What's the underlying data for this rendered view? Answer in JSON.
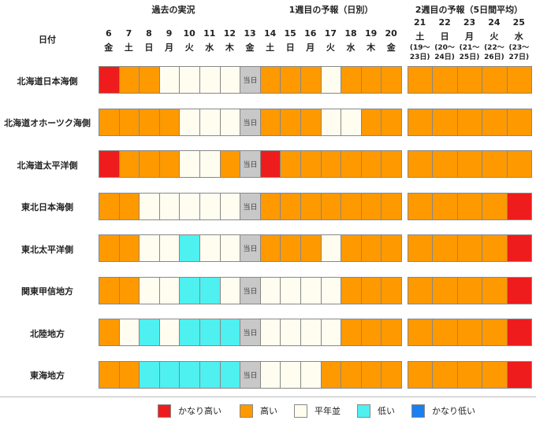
{
  "header": {
    "date_label": "日付",
    "past_label": "過去の実況",
    "week1_label": "1週目の予報（日別）",
    "week2_label": "2週目の予報（5日間平均）"
  },
  "colors": {
    "very_high": "#ee1c1c",
    "high": "#ff9900",
    "normal": "#fffdf0",
    "low": "#4ff0f0",
    "very_low": "#1a7ff0",
    "today": "#c8c8c8"
  },
  "chart_data": {
    "type": "table",
    "days": [
      {
        "num": "6",
        "wd": "金",
        "section": "past"
      },
      {
        "num": "7",
        "wd": "土",
        "section": "past"
      },
      {
        "num": "8",
        "wd": "日",
        "section": "past"
      },
      {
        "num": "9",
        "wd": "月",
        "section": "past"
      },
      {
        "num": "10",
        "wd": "火",
        "section": "past"
      },
      {
        "num": "11",
        "wd": "水",
        "section": "past"
      },
      {
        "num": "12",
        "wd": "木",
        "section": "past"
      },
      {
        "num": "13",
        "wd": "金",
        "section": "today"
      },
      {
        "num": "14",
        "wd": "土",
        "section": "week1"
      },
      {
        "num": "15",
        "wd": "日",
        "section": "week1"
      },
      {
        "num": "16",
        "wd": "月",
        "section": "week1"
      },
      {
        "num": "17",
        "wd": "火",
        "section": "week1"
      },
      {
        "num": "18",
        "wd": "水",
        "section": "week1"
      },
      {
        "num": "19",
        "wd": "木",
        "section": "week1"
      },
      {
        "num": "20",
        "wd": "金",
        "section": "week1"
      },
      {
        "num": "21",
        "wd": "土",
        "section": "week2",
        "range": [
          "(19〜",
          "23日)"
        ]
      },
      {
        "num": "22",
        "wd": "日",
        "section": "week2",
        "range": [
          "(20〜",
          "24日)"
        ]
      },
      {
        "num": "23",
        "wd": "月",
        "section": "week2",
        "range": [
          "(21〜",
          "25日)"
        ]
      },
      {
        "num": "24",
        "wd": "火",
        "section": "week2",
        "range": [
          "(22〜",
          "26日)"
        ]
      },
      {
        "num": "25",
        "wd": "水",
        "section": "week2",
        "range": [
          "(23〜",
          "27日)"
        ]
      }
    ],
    "today_label": "当日",
    "categories": [
      "very_high",
      "high",
      "normal",
      "low",
      "very_low"
    ],
    "regions": [
      {
        "name": "北海道日本海側",
        "cells": [
          "very_high",
          "high",
          "high",
          "normal",
          "normal",
          "normal",
          "normal",
          "today",
          "high",
          "high",
          "high",
          "normal",
          "high",
          "high",
          "high",
          "high",
          "high",
          "high",
          "high",
          "high"
        ]
      },
      {
        "name": "北海道オホーツク海側",
        "cells": [
          "high",
          "high",
          "high",
          "high",
          "normal",
          "normal",
          "normal",
          "today",
          "high",
          "high",
          "high",
          "normal",
          "normal",
          "high",
          "high",
          "high",
          "high",
          "high",
          "high",
          "high"
        ]
      },
      {
        "name": "北海道太平洋側",
        "cells": [
          "very_high",
          "high",
          "high",
          "high",
          "normal",
          "normal",
          "high",
          "today",
          "very_high",
          "high",
          "high",
          "high",
          "high",
          "high",
          "high",
          "high",
          "high",
          "high",
          "high",
          "high"
        ]
      },
      {
        "name": "東北日本海側",
        "cells": [
          "high",
          "high",
          "normal",
          "normal",
          "normal",
          "normal",
          "normal",
          "today",
          "high",
          "high",
          "high",
          "high",
          "high",
          "high",
          "high",
          "high",
          "high",
          "high",
          "high",
          "very_high"
        ]
      },
      {
        "name": "東北太平洋側",
        "cells": [
          "high",
          "high",
          "normal",
          "normal",
          "low",
          "normal",
          "normal",
          "today",
          "high",
          "high",
          "high",
          "normal",
          "high",
          "high",
          "high",
          "high",
          "high",
          "high",
          "high",
          "very_high"
        ]
      },
      {
        "name": "関東甲信地方",
        "cells": [
          "high",
          "high",
          "normal",
          "normal",
          "low",
          "low",
          "normal",
          "today",
          "normal",
          "normal",
          "normal",
          "normal",
          "high",
          "high",
          "high",
          "high",
          "high",
          "high",
          "high",
          "very_high"
        ]
      },
      {
        "name": "北陸地方",
        "cells": [
          "high",
          "normal",
          "low",
          "normal",
          "low",
          "low",
          "low",
          "today",
          "normal",
          "normal",
          "normal",
          "normal",
          "high",
          "high",
          "high",
          "high",
          "high",
          "high",
          "high",
          "very_high"
        ]
      },
      {
        "name": "東海地方",
        "cells": [
          "high",
          "high",
          "low",
          "low",
          "low",
          "low",
          "low",
          "today",
          "normal",
          "normal",
          "normal",
          "high",
          "high",
          "high",
          "high",
          "high",
          "high",
          "high",
          "high",
          "very_high"
        ]
      }
    ]
  },
  "legend": [
    {
      "key": "very_high",
      "label": "かなり高い"
    },
    {
      "key": "high",
      "label": "高い"
    },
    {
      "key": "normal",
      "label": "平年並"
    },
    {
      "key": "low",
      "label": "低い"
    },
    {
      "key": "very_low",
      "label": "かなり低い"
    }
  ]
}
